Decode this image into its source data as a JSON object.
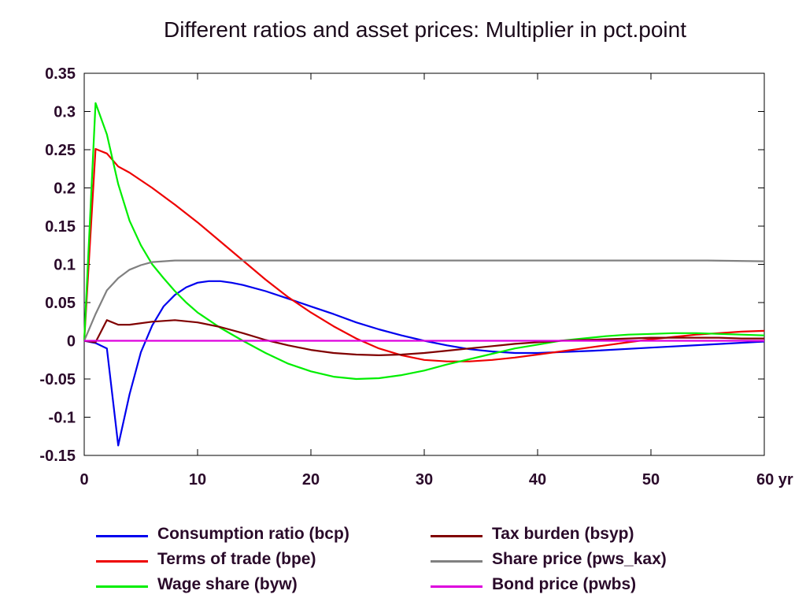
{
  "chart_data": {
    "type": "line",
    "title": "Different ratios and asset prices: Multiplier in pct.point",
    "xlabel": "",
    "ylabel": "",
    "x_unit_label": "yr",
    "xlim": [
      0,
      60
    ],
    "ylim": [
      -0.15,
      0.35
    ],
    "x_ticks": [
      0,
      10,
      20,
      30,
      40,
      50,
      60
    ],
    "x_tick_labels": [
      "0",
      "10",
      "20",
      "30",
      "40",
      "50",
      "60 yr"
    ],
    "y_ticks": [
      0.35,
      0.3,
      0.25,
      0.2,
      0.15,
      0.1,
      0.05,
      0,
      -0.05,
      -0.1,
      -0.15
    ],
    "y_tick_labels": [
      "0.35",
      "0.3",
      "0.25",
      "0.2",
      "0.15",
      "0.1",
      "0.05",
      "0",
      "-0.05",
      "-0.1",
      "-0.15"
    ],
    "grid": false,
    "legend_position": "bottom",
    "series": [
      {
        "name": "Consumption ratio (bcp)",
        "color": "#0000ee",
        "x": [
          0,
          1,
          2,
          3,
          4,
          5,
          6,
          7,
          8,
          9,
          10,
          11,
          12,
          13,
          14,
          16,
          18,
          20,
          22,
          24,
          26,
          28,
          30,
          32,
          34,
          36,
          38,
          40,
          45,
          50,
          55,
          60
        ],
        "y": [
          0,
          -0.003,
          -0.01,
          -0.137,
          -0.07,
          -0.015,
          0.02,
          0.045,
          0.06,
          0.07,
          0.076,
          0.078,
          0.078,
          0.076,
          0.073,
          0.065,
          0.055,
          0.045,
          0.035,
          0.024,
          0.015,
          0.007,
          0,
          -0.006,
          -0.011,
          -0.014,
          -0.016,
          -0.016,
          -0.013,
          -0.009,
          -0.005,
          -0.001
        ]
      },
      {
        "name": "Terms of trade (bpe)",
        "color": "#ee0000",
        "x": [
          0,
          1,
          2,
          3,
          4,
          6,
          8,
          10,
          12,
          14,
          16,
          18,
          20,
          22,
          24,
          26,
          28,
          30,
          32,
          34,
          36,
          38,
          40,
          42,
          44,
          46,
          48,
          50,
          52,
          54,
          56,
          58,
          60
        ],
        "y": [
          0,
          0.251,
          0.245,
          0.228,
          0.22,
          0.2,
          0.178,
          0.155,
          0.13,
          0.105,
          0.08,
          0.057,
          0.037,
          0.019,
          0.003,
          -0.01,
          -0.019,
          -0.025,
          -0.027,
          -0.027,
          -0.025,
          -0.022,
          -0.018,
          -0.014,
          -0.01,
          -0.006,
          -0.002,
          0.002,
          0.005,
          0.008,
          0.01,
          0.012,
          0.013
        ]
      },
      {
        "name": "Wage share (byw)",
        "color": "#00ee00",
        "x": [
          0,
          1,
          2,
          3,
          4,
          5,
          6,
          7,
          8,
          9,
          10,
          12,
          14,
          16,
          18,
          20,
          22,
          24,
          26,
          28,
          30,
          32,
          34,
          36,
          38,
          40,
          42,
          44,
          46,
          48,
          50,
          52,
          54,
          56,
          58,
          60
        ],
        "y": [
          0,
          0.311,
          0.27,
          0.205,
          0.157,
          0.125,
          0.1,
          0.082,
          0.065,
          0.05,
          0.037,
          0.017,
          0,
          -0.016,
          -0.03,
          -0.04,
          -0.047,
          -0.05,
          -0.049,
          -0.045,
          -0.039,
          -0.031,
          -0.024,
          -0.017,
          -0.01,
          -0.005,
          0,
          0.003,
          0.006,
          0.008,
          0.009,
          0.01,
          0.01,
          0.009,
          0.008,
          0.007
        ]
      },
      {
        "name": "Tax burden (bsyp)",
        "color": "#800000",
        "x": [
          0,
          1,
          2,
          3,
          4,
          6,
          8,
          10,
          12,
          14,
          16,
          18,
          20,
          22,
          24,
          26,
          28,
          30,
          32,
          34,
          36,
          38,
          40,
          42,
          44,
          46,
          48,
          50,
          52,
          54,
          56,
          58,
          60
        ],
        "y": [
          0,
          -0.002,
          0.027,
          0.021,
          0.021,
          0.025,
          0.027,
          0.024,
          0.018,
          0.01,
          0.001,
          -0.006,
          -0.012,
          -0.016,
          -0.018,
          -0.019,
          -0.018,
          -0.016,
          -0.013,
          -0.01,
          -0.007,
          -0.004,
          -0.002,
          0,
          0.001,
          0.002,
          0.003,
          0.004,
          0.004,
          0.004,
          0.004,
          0.003,
          0.003
        ]
      },
      {
        "name": "Share price (pws_kax)",
        "color": "#808080",
        "x": [
          0,
          1,
          2,
          3,
          4,
          5,
          6,
          7,
          8,
          10,
          15,
          20,
          30,
          40,
          50,
          55,
          60
        ],
        "y": [
          0,
          0.035,
          0.066,
          0.082,
          0.093,
          0.099,
          0.103,
          0.104,
          0.105,
          0.105,
          0.105,
          0.105,
          0.105,
          0.105,
          0.105,
          0.105,
          0.104
        ]
      },
      {
        "name": "Bond price (pwbs)",
        "color": "#dd00dd",
        "x": [
          0,
          60
        ],
        "y": [
          0,
          0
        ]
      }
    ]
  }
}
